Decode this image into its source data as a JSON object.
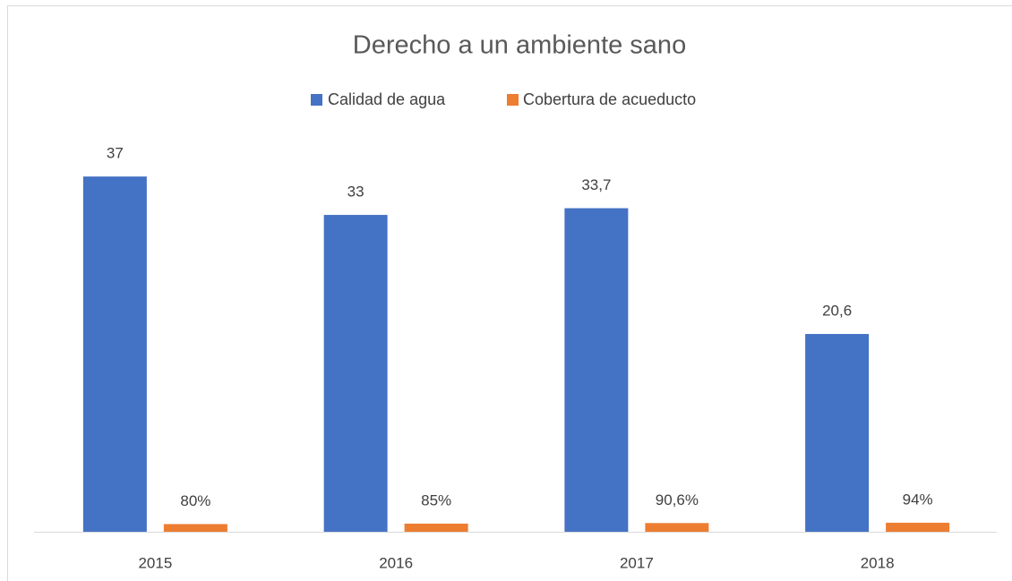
{
  "chart_data": {
    "type": "bar",
    "title": "Derecho a un ambiente sano",
    "categories": [
      "2015",
      "2016",
      "2017",
      "2018"
    ],
    "series": [
      {
        "name": "Calidad de agua",
        "color": "#4472c4",
        "values": [
          37,
          33,
          33.7,
          20.6
        ],
        "value_labels": [
          "37",
          "33",
          "33,7",
          "20,6"
        ]
      },
      {
        "name": "Cobertura de acueducto",
        "color": "#ed7d31",
        "values": [
          0.8,
          0.85,
          0.906,
          0.94
        ],
        "value_labels": [
          "80%",
          "85%",
          "90,6%",
          "94%"
        ]
      }
    ],
    "ylim": [
      0,
      40
    ],
    "legend": "top"
  }
}
